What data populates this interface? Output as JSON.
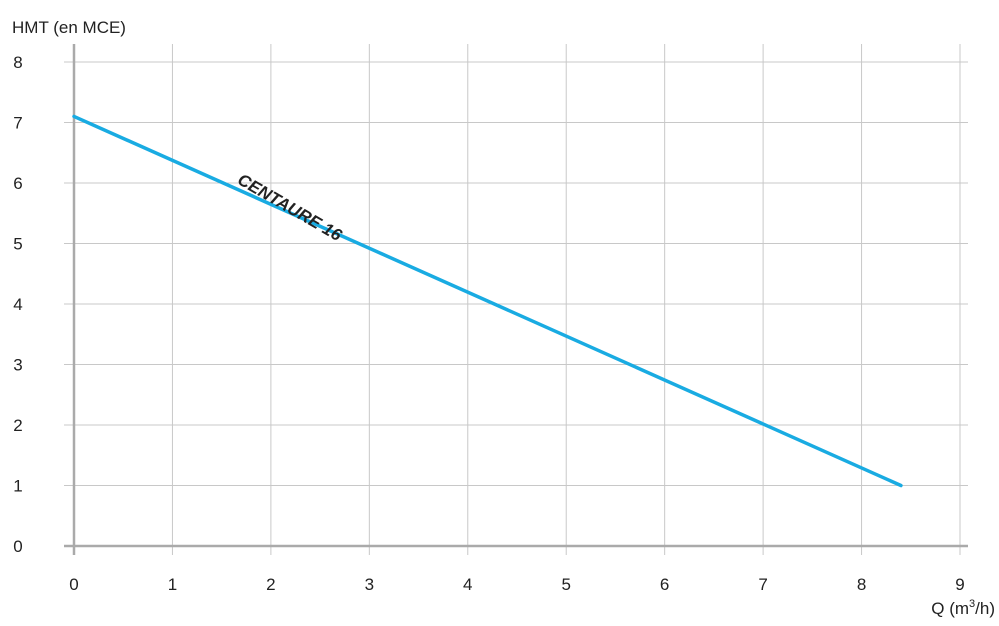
{
  "chart_data": {
    "type": "line",
    "ylabel": "HMT (en MCE)",
    "xlabel": "Q (m",
    "xlabel_sup": "3",
    "xlabel_tail": "/h)",
    "xlim": [
      0,
      9
    ],
    "ylim": [
      0,
      8
    ],
    "x_ticks": [
      "0",
      "1",
      "2",
      "3",
      "4",
      "5",
      "6",
      "7",
      "8",
      "9"
    ],
    "y_ticks": [
      "0",
      "1",
      "2",
      "3",
      "4",
      "5",
      "6",
      "7",
      "8"
    ],
    "grid": true,
    "series": [
      {
        "name": "CENTAURE 16",
        "color": "#19ABE2",
        "x": [
          0,
          8.4
        ],
        "y": [
          7.1,
          1.0
        ]
      }
    ]
  }
}
